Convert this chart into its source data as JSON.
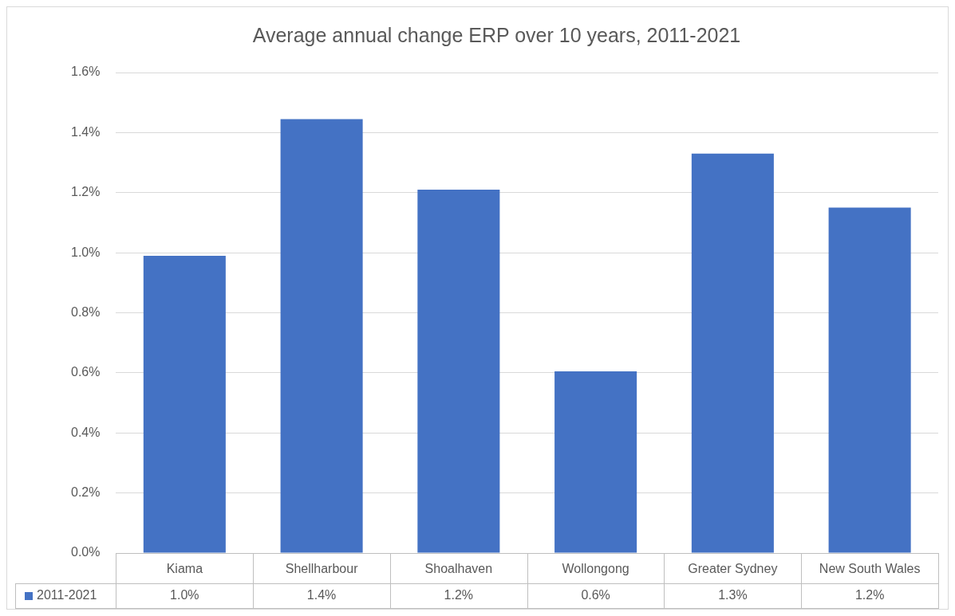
{
  "chart_data": {
    "type": "bar",
    "title": "Average annual change ERP over 10 years, 2011-2021",
    "categories": [
      "Kiama",
      "Shellharbour",
      "Shoalhaven",
      "Wollongong",
      "Greater Sydney",
      "New South Wales"
    ],
    "series": [
      {
        "name": "2011-2021",
        "color": "#4472c4",
        "values": [
          0.99,
          1.445,
          1.21,
          0.605,
          1.33,
          1.15
        ],
        "value_labels": [
          "1.0%",
          "1.4%",
          "1.2%",
          "0.6%",
          "1.3%",
          "1.2%"
        ]
      }
    ],
    "ylim": [
      0,
      1.6
    ],
    "yticks": [
      {
        "value": 0,
        "label": "0.0%"
      },
      {
        "value": 0.2,
        "label": "0.2%"
      },
      {
        "value": 0.4,
        "label": "0.4%"
      },
      {
        "value": 0.6,
        "label": "0.6%"
      },
      {
        "value": 0.8,
        "label": "0.8%"
      },
      {
        "value": 1.0,
        "label": "1.0%"
      },
      {
        "value": 1.2,
        "label": "1.2%"
      },
      {
        "value": 1.4,
        "label": "1.4%"
      },
      {
        "value": 1.6,
        "label": "1.6%"
      }
    ],
    "grid": "y",
    "legend": "bottom left"
  }
}
